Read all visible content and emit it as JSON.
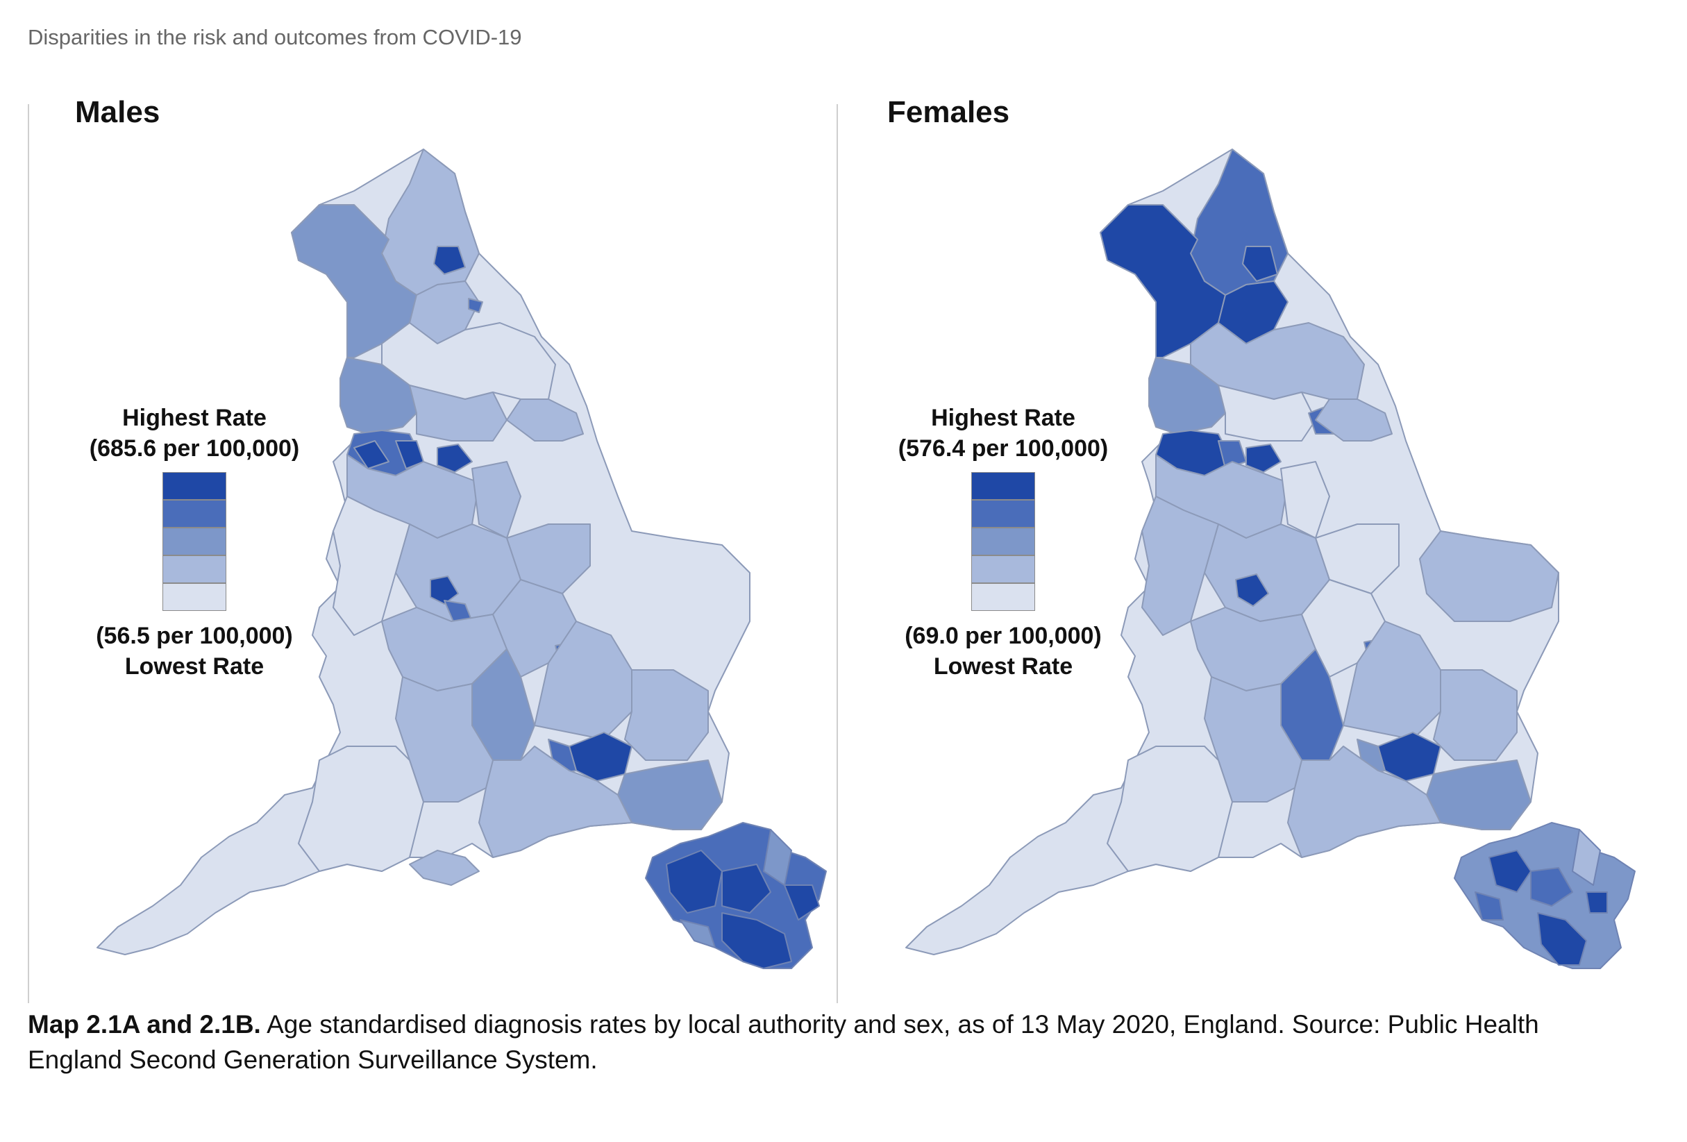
{
  "header": "Disparities in the risk and outcomes from COVID-19",
  "colors": {
    "scale": [
      "#1f48a6",
      "#4a6dba",
      "#7d97c9",
      "#a8b9dc",
      "#dae1ef"
    ],
    "border": "#8c9ab8"
  },
  "maps": [
    {
      "title": "Males",
      "legend": {
        "high_label": "Highest Rate",
        "high_value": "(685.6 per 100,000)",
        "low_value": "(56.5 per 100,000)",
        "low_label": "Lowest Rate"
      }
    },
    {
      "title": "Females",
      "legend": {
        "high_label": "Highest Rate",
        "high_value": "(576.4 per 100,000)",
        "low_value": "(69.0 per 100,000)",
        "low_label": "Lowest Rate"
      }
    }
  ],
  "caption": {
    "bold": "Map 2.1A and 2.1B.",
    "text": " Age standardised diagnosis rates by local authority and sex, as of 13 May 2020, England. Source: Public Health England Second Generation Surveillance System."
  }
}
